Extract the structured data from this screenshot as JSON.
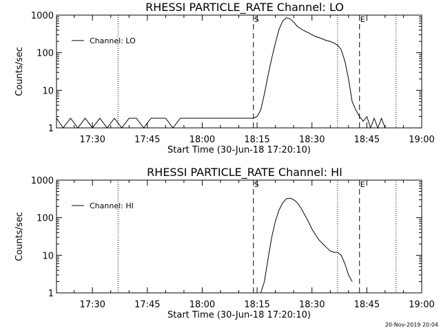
{
  "footer_date": "20-Nov-2019 20:04",
  "chart_data": [
    {
      "type": "line",
      "title": "RHESSI PARTICLE_RATE Channel: LO",
      "xlabel": "Start Time (30-Jun-18 17:20:10)",
      "ylabel": "Counts/sec",
      "yscale": "log",
      "xlim": [
        "17:20:10",
        "19:00"
      ],
      "ylim": [
        1,
        1000
      ],
      "xticks": [
        "17:30",
        "17:45",
        "18:00",
        "18:15",
        "18:30",
        "18:45",
        "19:00"
      ],
      "yticks": [
        "1",
        "10",
        "100",
        "1000"
      ],
      "legend": {
        "placement": "top-left",
        "entries": [
          "Channel: LO"
        ]
      },
      "vlines_dotted": [
        "17:37",
        "18:37",
        "18:53"
      ],
      "vlines_dashed": [
        {
          "time": "18:14",
          "label": "S"
        },
        {
          "time": "18:43",
          "label": "E"
        }
      ],
      "series": [
        {
          "name": "Channel: LO",
          "x": [
            "17:20:10",
            "17:22",
            "17:24",
            "17:26",
            "17:28",
            "17:30",
            "17:32",
            "17:34",
            "17:36",
            "17:38",
            "17:40",
            "17:42",
            "17:44",
            "17:46",
            "17:48",
            "17:50",
            "17:52",
            "17:54",
            "17:56",
            "17:58",
            "18:00",
            "18:02",
            "18:04",
            "18:06",
            "18:08",
            "18:10",
            "18:12",
            "18:14",
            "18:15",
            "18:16",
            "18:17",
            "18:18",
            "18:19",
            "18:20",
            "18:21",
            "18:22",
            "18:23",
            "18:24",
            "18:25",
            "18:26",
            "18:27",
            "18:28",
            "18:29",
            "18:30",
            "18:31",
            "18:32",
            "18:33",
            "18:34",
            "18:35",
            "18:36",
            "18:37",
            "18:38",
            "18:39",
            "18:40",
            "18:41",
            "18:42",
            "18:43",
            "18:44",
            "18:45",
            "18:46",
            "18:47",
            "18:48",
            "18:49",
            "18:50",
            "18:51"
          ],
          "values": [
            1.8,
            1,
            1.8,
            1,
            1.8,
            1,
            1.8,
            1,
            1.8,
            1,
            1.8,
            1.8,
            1,
            1.8,
            1.8,
            1.8,
            1,
            1.8,
            1.8,
            1.8,
            1.8,
            1.8,
            1.8,
            1.8,
            1.8,
            1.8,
            1.8,
            1.8,
            2,
            3,
            8,
            25,
            70,
            180,
            420,
            700,
            850,
            800,
            650,
            500,
            430,
            380,
            340,
            300,
            270,
            250,
            230,
            210,
            200,
            180,
            160,
            120,
            60,
            20,
            5,
            3,
            2,
            1.5,
            2,
            1,
            1.8,
            1,
            1.8,
            1,
            1
          ]
        }
      ]
    },
    {
      "type": "line",
      "title": "RHESSI PARTICLE_RATE Channel: HI",
      "xlabel": "Start Time (30-Jun-18 17:20:10)",
      "ylabel": "Counts/sec",
      "yscale": "log",
      "xlim": [
        "17:20:10",
        "19:00"
      ],
      "ylim": [
        1,
        1000
      ],
      "xticks": [
        "17:30",
        "17:45",
        "18:00",
        "18:15",
        "18:30",
        "18:45",
        "19:00"
      ],
      "yticks": [
        "1",
        "10",
        "100",
        "1000"
      ],
      "legend": {
        "placement": "top-left",
        "entries": [
          "Channel: HI"
        ]
      },
      "vlines_dotted": [
        "17:37",
        "18:37",
        "18:53"
      ],
      "vlines_dashed": [
        {
          "time": "18:14",
          "label": "S"
        },
        {
          "time": "18:43",
          "label": "E"
        }
      ],
      "series": [
        {
          "name": "Channel: HI",
          "x": [
            "18:16",
            "18:17",
            "18:18",
            "18:19",
            "18:20",
            "18:21",
            "18:22",
            "18:23",
            "18:24",
            "18:25",
            "18:26",
            "18:27",
            "18:28",
            "18:29",
            "18:30",
            "18:31",
            "18:32",
            "18:33",
            "18:34",
            "18:35",
            "18:36",
            "18:37",
            "18:38",
            "18:39",
            "18:40",
            "18:41"
          ],
          "values": [
            1,
            2,
            8,
            30,
            80,
            160,
            250,
            320,
            330,
            300,
            250,
            180,
            120,
            80,
            50,
            35,
            25,
            20,
            16,
            13,
            12,
            12,
            10,
            6,
            3,
            2
          ]
        }
      ]
    }
  ]
}
